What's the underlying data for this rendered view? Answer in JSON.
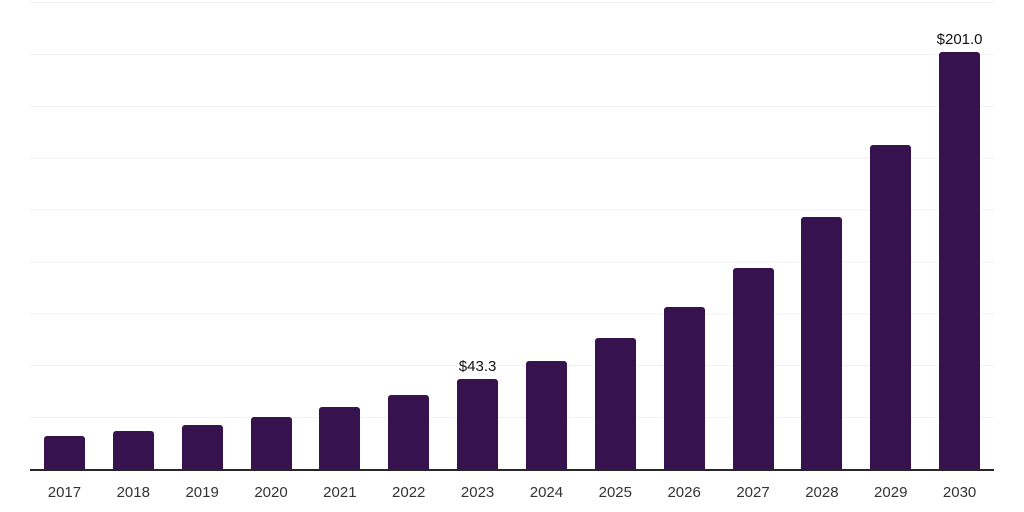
{
  "chart_data": {
    "type": "bar",
    "title": "",
    "xlabel": "",
    "ylabel": "",
    "categories": [
      "2017",
      "2018",
      "2019",
      "2020",
      "2021",
      "2022",
      "2023",
      "2024",
      "2025",
      "2026",
      "2027",
      "2028",
      "2029",
      "2030"
    ],
    "values": [
      16.0,
      18.4,
      21.4,
      24.9,
      30.1,
      35.9,
      43.3,
      52.1,
      63.3,
      77.9,
      96.8,
      121.5,
      156.2,
      201.0
    ],
    "point_labels": [
      "",
      "",
      "",
      "",
      "",
      "",
      "$43.3",
      "",
      "",
      "",
      "",
      "",
      "",
      "$201.0"
    ],
    "ylim": [
      0,
      225
    ],
    "gridline_step": 25,
    "grid": "horizontal",
    "legend_position": "none",
    "bar_color": "#36124E",
    "gridline_color": "#F1F1F3",
    "axis_line_color": "#262626",
    "tick_label_color": "#333333",
    "data_label_color": "#111111"
  }
}
